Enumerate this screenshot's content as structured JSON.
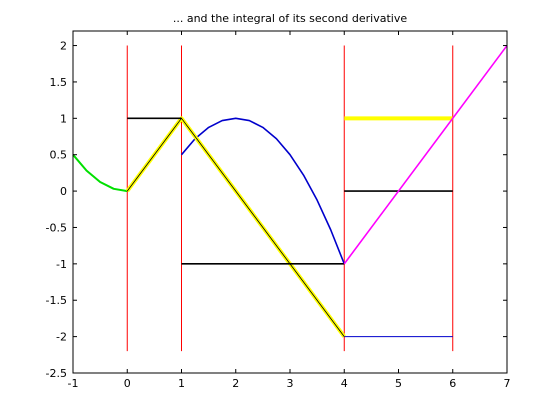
{
  "chart_data": {
    "type": "line",
    "title": "... and the integral of its second derivative",
    "xlabel": "",
    "ylabel": "",
    "xlim": [
      -1,
      7
    ],
    "ylim": [
      -2.5,
      2.2
    ],
    "grid": false,
    "x_ticks": [
      -1,
      0,
      1,
      2,
      3,
      4,
      5,
      6,
      7
    ],
    "y_ticks": [
      -2.5,
      -2,
      -1.5,
      -1,
      -0.5,
      0,
      0.5,
      1,
      1.5,
      2
    ],
    "x_tick_labels": [
      "-1",
      "0",
      "1",
      "2",
      "3",
      "4",
      "5",
      "6",
      "7"
    ],
    "y_tick_labels": [
      "-2.5",
      "-2",
      "-1.5",
      "-1",
      "-0.5",
      "0",
      "0.5",
      "1",
      "1.5",
      "2"
    ],
    "series": [
      {
        "color": "#ff0000",
        "width": 1,
        "style": "vertical",
        "x": [
          0,
          1,
          4,
          6
        ],
        "y_range": [
          -2.2,
          2
        ]
      },
      {
        "color": "#00e000",
        "width": 2,
        "x": [
          -1,
          -0.75,
          -0.5,
          -0.25,
          0
        ],
        "y": [
          0.5,
          0.28125,
          0.125,
          0.03125,
          0
        ]
      },
      {
        "color": "#0000cc",
        "width": 1.6,
        "x": [
          1,
          1.25,
          1.5,
          1.75,
          2,
          2.25,
          2.5,
          2.75,
          3,
          3.25,
          3.5,
          3.75,
          4
        ],
        "y": [
          0.5,
          0.71875,
          0.875,
          0.96875,
          1,
          0.96875,
          0.875,
          0.71875,
          0.5,
          0.21875,
          -0.125,
          -0.53125,
          -1
        ]
      },
      {
        "color": "#0000cc",
        "width": 1,
        "x": [
          4,
          6
        ],
        "y": [
          -2,
          -2
        ]
      },
      {
        "color": "#ffff00",
        "width": 4,
        "x": [
          0,
          1,
          4
        ],
        "y": [
          0,
          1,
          -2
        ]
      },
      {
        "color": "#ffff00",
        "width": 4,
        "x": [
          4,
          6
        ],
        "y": [
          1,
          1
        ]
      },
      {
        "color": "#000000",
        "width": 0.8,
        "x": [
          0,
          1,
          4
        ],
        "y": [
          0,
          1,
          -2
        ]
      },
      {
        "color": "#000000",
        "width": 1.6,
        "x": [
          0,
          1
        ],
        "y": [
          1,
          1
        ]
      },
      {
        "color": "#000000",
        "width": 1.6,
        "x": [
          1,
          4
        ],
        "y": [
          -1,
          -1
        ]
      },
      {
        "color": "#000000",
        "width": 1.6,
        "x": [
          4,
          6
        ],
        "y": [
          0,
          0
        ]
      },
      {
        "color": "#ff00ff",
        "width": 1.6,
        "x": [
          4,
          7
        ],
        "y": [
          -1,
          2
        ]
      }
    ]
  }
}
